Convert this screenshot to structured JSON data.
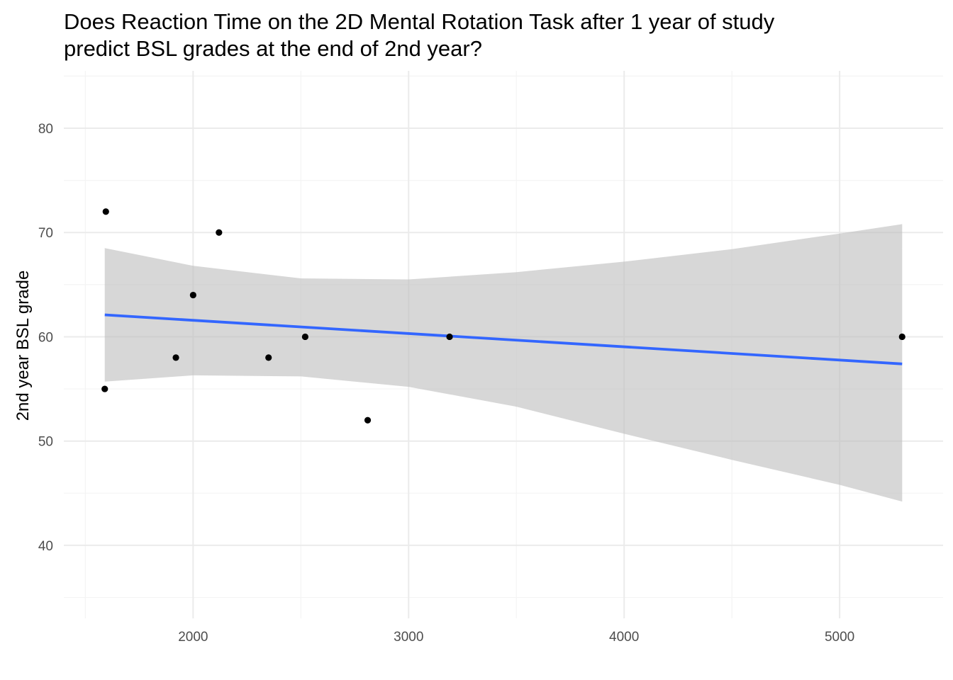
{
  "chart_data": {
    "type": "scatter",
    "title": "Does Reaction Time on the 2D Mental Rotation Task after 1 year of study predict BSL grades at the end of 2nd year?",
    "title_lines": [
      "Does Reaction Time on the 2D Mental Rotation Task after 1 year of study",
      "predict BSL grades at the end of 2nd year?"
    ],
    "xlabel": "",
    "ylabel": "2nd year BSL grade",
    "xlim": [
      1400,
      5480
    ],
    "ylim": [
      33.0,
      85.5
    ],
    "x_ticks": [
      2000,
      3000,
      4000,
      5000
    ],
    "x_tick_labels": [
      "2000",
      "3000",
      "4000",
      "5000"
    ],
    "x_minor_ticks": [
      1500,
      2500,
      3500,
      4500
    ],
    "y_ticks": [
      40,
      50,
      60,
      70,
      80
    ],
    "y_tick_labels": [
      "40",
      "50",
      "60",
      "70",
      "80"
    ],
    "y_minor_ticks": [
      35,
      45,
      55,
      65,
      75,
      85
    ],
    "grid": true,
    "legend": "none",
    "points": [
      {
        "x": 1590,
        "y": 55
      },
      {
        "x": 1595,
        "y": 72
      },
      {
        "x": 1920,
        "y": 58
      },
      {
        "x": 2000,
        "y": 64
      },
      {
        "x": 2120,
        "y": 70
      },
      {
        "x": 2350,
        "y": 58
      },
      {
        "x": 2520,
        "y": 60
      },
      {
        "x": 2810,
        "y": 52
      },
      {
        "x": 3190,
        "y": 60
      },
      {
        "x": 5290,
        "y": 60
      }
    ],
    "regression_line": {
      "x": [
        1590,
        5290
      ],
      "y": [
        62.1,
        57.4
      ]
    },
    "confidence_band": {
      "x": [
        1590,
        2000,
        2500,
        3000,
        3500,
        4000,
        4500,
        5000,
        5290
      ],
      "upper": [
        68.5,
        66.8,
        65.6,
        65.5,
        66.2,
        67.2,
        68.4,
        69.9,
        70.8
      ],
      "lower": [
        55.7,
        56.3,
        56.2,
        55.2,
        53.3,
        50.7,
        48.2,
        45.8,
        44.2
      ]
    },
    "colors": {
      "points": "#000000",
      "line": "#3366ff",
      "band": "#bebebe",
      "grid_major": "#ebebeb",
      "grid_minor": "#f4f4f4"
    }
  }
}
